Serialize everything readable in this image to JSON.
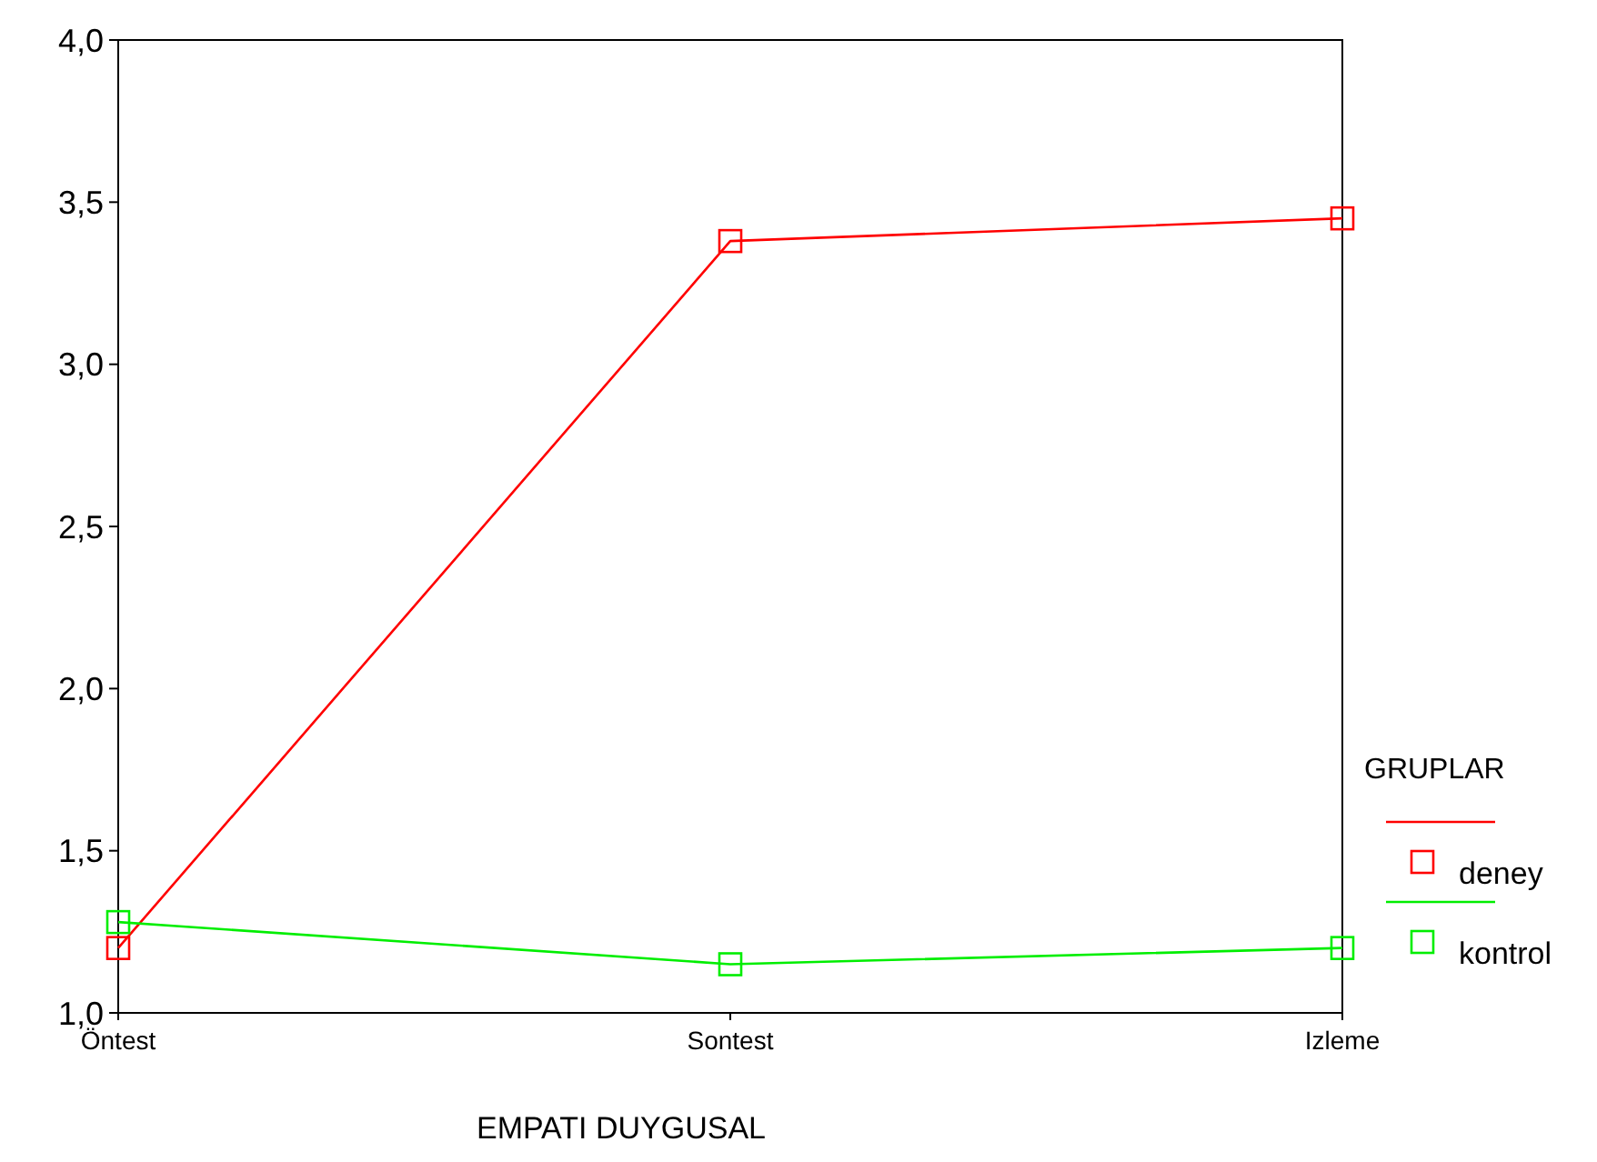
{
  "chart_data": {
    "type": "line",
    "xlabel": "EMPATI DUYGUSAL",
    "legend_title": "GRUPLAR",
    "categories": [
      "Öntest",
      "Sontest",
      "Izleme"
    ],
    "series": [
      {
        "name": "deney",
        "color": "#ff0000",
        "values": [
          1.2,
          3.38,
          3.45
        ]
      },
      {
        "name": "kontrol",
        "color": "#00ee00",
        "values": [
          1.28,
          1.15,
          1.2
        ]
      }
    ],
    "ylim": [
      1,
      4
    ],
    "yticks": [
      {
        "value": 1,
        "label": "1,0"
      },
      {
        "value": 1.5,
        "label": "1,5"
      },
      {
        "value": 2,
        "label": "2,0"
      },
      {
        "value": 2.5,
        "label": "2,5"
      },
      {
        "value": 3,
        "label": "3,0"
      },
      {
        "value": 3.5,
        "label": "3,5"
      },
      {
        "value": 4,
        "label": "4,0"
      }
    ],
    "marker": "square",
    "line_style": "solid",
    "legend": "right",
    "grid": false
  }
}
